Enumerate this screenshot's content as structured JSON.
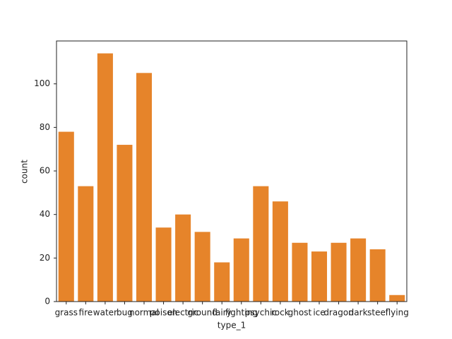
{
  "chart_data": {
    "type": "bar",
    "x_label": "type_1",
    "y_label": "count",
    "categories": [
      "grass",
      "fire",
      "water",
      "bug",
      "normal",
      "poison",
      "electric",
      "ground",
      "fairy",
      "fighting",
      "psychic",
      "rock",
      "ghost",
      "ice",
      "dragon",
      "dark",
      "steel",
      "flying"
    ],
    "values": [
      78,
      53,
      114,
      72,
      105,
      34,
      40,
      32,
      18,
      29,
      53,
      46,
      27,
      23,
      27,
      29,
      24,
      3
    ],
    "color": "#e6842a",
    "ylim": [
      0,
      119.7
    ],
    "yticks": [
      0,
      20,
      40,
      60,
      80,
      100
    ],
    "grid": false
  }
}
